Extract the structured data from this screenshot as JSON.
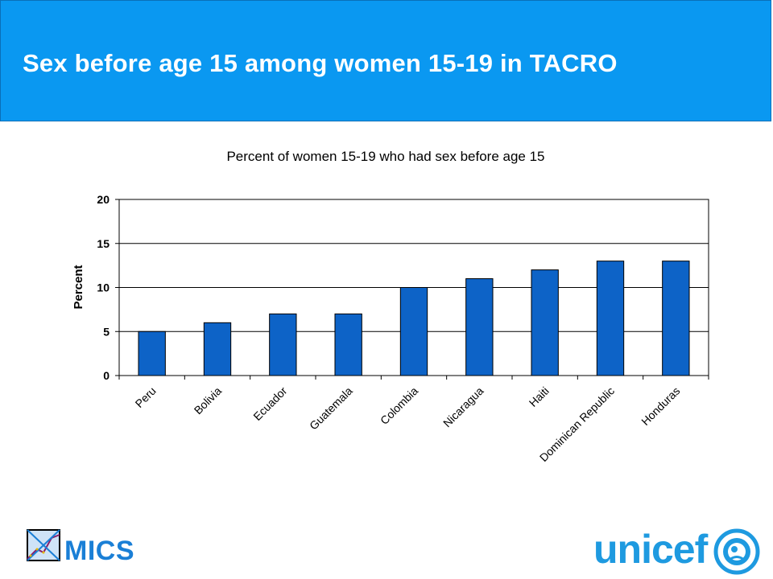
{
  "header": {
    "title": "Sex before age 15 among women 15-19 in TACRO",
    "background_color": "#0a98f1"
  },
  "chart_data": {
    "type": "bar",
    "title": "Percent of women 15-19 who had sex before age 15",
    "xlabel": "",
    "ylabel": "Percent",
    "categories": [
      "Peru",
      "Bolivia",
      "Ecuador",
      "Guatemala",
      "Colombia",
      "Nicaragua",
      "Haiti",
      "Dominican Republic",
      "Honduras"
    ],
    "values": [
      5,
      6,
      7,
      7,
      10,
      11,
      12,
      13,
      13
    ],
    "ylim": [
      0,
      20
    ],
    "yticks": [
      0,
      5,
      10,
      15,
      20
    ],
    "grid": true,
    "legend": "none",
    "bar_color": "#0d63c7"
  },
  "footer": {
    "mics_label": "MICS",
    "unicef_label": "unicef"
  }
}
